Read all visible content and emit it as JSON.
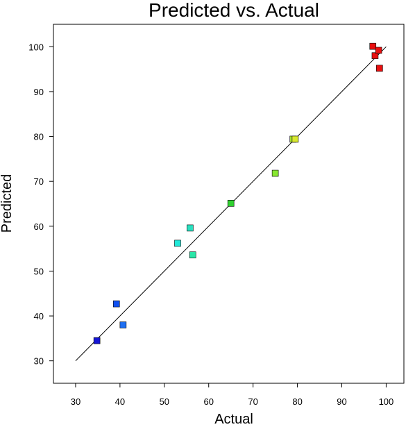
{
  "chart_data": {
    "type": "scatter",
    "title": "Predicted vs. Actual",
    "xlabel": "Actual",
    "ylabel": "Predicted",
    "xlim": [
      25,
      104
    ],
    "ylim": [
      25,
      105
    ],
    "xticks": [
      30,
      40,
      50,
      60,
      70,
      80,
      90,
      100
    ],
    "yticks": [
      30,
      40,
      50,
      60,
      70,
      80,
      90,
      100
    ],
    "reference_line": {
      "x": [
        30,
        100
      ],
      "y": [
        30,
        100
      ]
    },
    "grid": false,
    "points": [
      {
        "x": 34.8,
        "y": 34.5,
        "color": "#1515d6"
      },
      {
        "x": 39.2,
        "y": 42.7,
        "color": "#1050f0"
      },
      {
        "x": 40.7,
        "y": 38.0,
        "color": "#1e6ff2"
      },
      {
        "x": 53.0,
        "y": 56.2,
        "color": "#20e8d8"
      },
      {
        "x": 55.8,
        "y": 59.6,
        "color": "#2ae0c0"
      },
      {
        "x": 56.4,
        "y": 53.6,
        "color": "#2ae6a8"
      },
      {
        "x": 65.0,
        "y": 65.1,
        "color": "#30d030"
      },
      {
        "x": 75.0,
        "y": 71.8,
        "color": "#88e830"
      },
      {
        "x": 79.0,
        "y": 79.4,
        "color": "#a8e030"
      },
      {
        "x": 79.5,
        "y": 79.4,
        "color": "#d8e830"
      },
      {
        "x": 97.0,
        "y": 100.1,
        "color": "#e81010"
      },
      {
        "x": 97.5,
        "y": 98.0,
        "color": "#e81010"
      },
      {
        "x": 98.3,
        "y": 99.2,
        "color": "#e81010"
      },
      {
        "x": 98.5,
        "y": 95.2,
        "color": "#e81010"
      }
    ]
  }
}
